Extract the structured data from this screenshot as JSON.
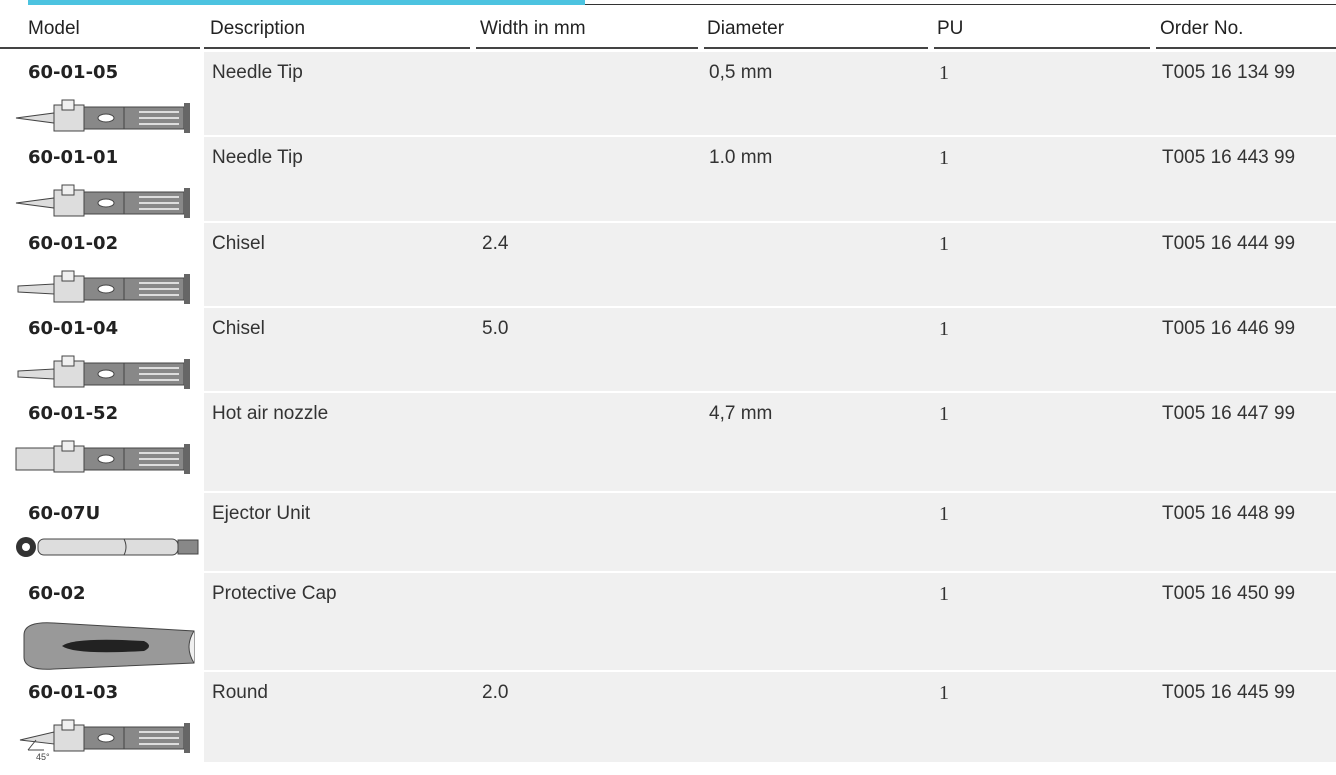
{
  "header": {
    "columns": [
      "Model",
      "Description",
      "Width in mm",
      "Diameter",
      "PU",
      "Order No."
    ]
  },
  "table": {
    "rows": [
      [
        "60-01-05",
        "Needle Tip",
        null,
        "0,5 mm",
        "1",
        "T005 16 134 99"
      ],
      [
        "60-01-01",
        "Needle Tip",
        null,
        "1.0 mm",
        "1",
        "T005 16 443 99"
      ],
      [
        "60-01-02",
        "Chisel",
        "2.4",
        null,
        "1",
        "T005 16 444 99"
      ],
      [
        "60-01-04",
        "Chisel",
        "5.0",
        null,
        "1",
        "T005 16 446 99"
      ],
      [
        "60-01-52",
        "Hot air nozzle",
        null,
        "4,7 mm",
        "1",
        "T005 16 447 99"
      ],
      [
        "60-07U",
        "Ejector Unit",
        null,
        null,
        "1",
        "T005 16 448 99"
      ],
      [
        "60-02",
        "Protective Cap",
        null,
        null,
        "1",
        "T005 16 450 99"
      ],
      [
        "60-01-03",
        "Round",
        "2.0",
        null,
        "1",
        "T005 16 445 99"
      ]
    ]
  }
}
